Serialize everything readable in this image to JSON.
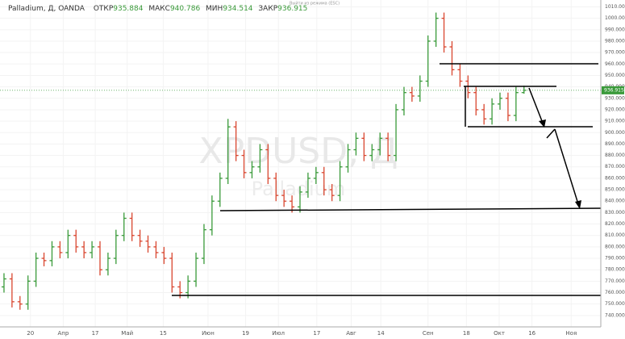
{
  "header": {
    "title": "Palladium, Д, OANDA",
    "open_label": "ОТКР",
    "open": "935.884",
    "high_label": "МАКС",
    "high": "940.786",
    "low_label": "МИН",
    "low": "934.514",
    "close_label": "ЗАКР",
    "close": "936.915"
  },
  "notice": "Выйти из режима (ESC)",
  "watermark": {
    "symbol": "XPDUSD, Д",
    "name": "Palladium"
  },
  "chart_data": {
    "type": "ohlc",
    "up_color": "#3a9a3a",
    "down_color": "#d9462f",
    "open": [
      765,
      772,
      752,
      750,
      770,
      790,
      788,
      800,
      795,
      810,
      800,
      795,
      800,
      780,
      790,
      810,
      825,
      810,
      805,
      800,
      795,
      790,
      765,
      760,
      770,
      790,
      815,
      840,
      860,
      905,
      880,
      865,
      870,
      885,
      860,
      845,
      840,
      835,
      848,
      860,
      865,
      850,
      845,
      870,
      885,
      895,
      880,
      885,
      895,
      880,
      920,
      935,
      932,
      945,
      980,
      1000,
      975,
      955,
      945,
      935,
      920,
      912,
      925,
      930,
      915,
      935
    ],
    "high": [
      777,
      777,
      757,
      775,
      795,
      795,
      805,
      805,
      815,
      815,
      805,
      805,
      805,
      795,
      815,
      830,
      830,
      815,
      810,
      805,
      800,
      795,
      770,
      775,
      795,
      820,
      845,
      865,
      912,
      910,
      885,
      875,
      890,
      890,
      865,
      850,
      845,
      853,
      865,
      870,
      870,
      855,
      875,
      890,
      900,
      900,
      890,
      900,
      900,
      925,
      940,
      940,
      950,
      985,
      1005,
      1005,
      980,
      960,
      950,
      940,
      925,
      930,
      935,
      935,
      940,
      941
    ],
    "low": [
      760,
      747,
      745,
      745,
      765,
      783,
      783,
      790,
      790,
      795,
      790,
      790,
      775,
      775,
      785,
      805,
      805,
      800,
      795,
      790,
      785,
      760,
      755,
      755,
      765,
      785,
      810,
      835,
      855,
      875,
      860,
      860,
      865,
      855,
      840,
      835,
      830,
      830,
      843,
      855,
      845,
      840,
      840,
      865,
      880,
      875,
      875,
      880,
      875,
      875,
      915,
      927,
      927,
      940,
      975,
      970,
      950,
      940,
      930,
      915,
      907,
      907,
      920,
      910,
      910,
      934
    ],
    "close": [
      772,
      752,
      750,
      770,
      790,
      788,
      800,
      795,
      810,
      800,
      795,
      800,
      780,
      790,
      810,
      825,
      810,
      805,
      800,
      795,
      790,
      765,
      760,
      770,
      790,
      815,
      840,
      860,
      905,
      880,
      865,
      870,
      885,
      860,
      845,
      840,
      835,
      848,
      860,
      865,
      850,
      845,
      870,
      885,
      895,
      880,
      885,
      895,
      880,
      920,
      935,
      932,
      945,
      980,
      1000,
      975,
      955,
      945,
      935,
      920,
      912,
      925,
      930,
      915,
      935,
      937
    ],
    "last_price_label": "936.915",
    "xlim": [
      -0.5,
      74.6
    ],
    "xticks": [
      {
        "value": 3.3,
        "label": "20"
      },
      {
        "value": 7.4,
        "label": "Апр"
      },
      {
        "value": 11.4,
        "label": "17"
      },
      {
        "value": 15.4,
        "label": "Май"
      },
      {
        "value": 19.9,
        "label": "15"
      },
      {
        "value": 25.5,
        "label": "Июн"
      },
      {
        "value": 30.2,
        "label": "19"
      },
      {
        "value": 34.3,
        "label": "Июл"
      },
      {
        "value": 39.1,
        "label": "17"
      },
      {
        "value": 43.4,
        "label": "Авг"
      },
      {
        "value": 47.1,
        "label": "14"
      },
      {
        "value": 53.0,
        "label": "Сен"
      },
      {
        "value": 57.8,
        "label": "18"
      },
      {
        "value": 61.9,
        "label": "Окт"
      },
      {
        "value": 66.0,
        "label": "16"
      },
      {
        "value": 70.9,
        "label": "Ноя"
      }
    ],
    "ylim": [
      730,
      1016
    ],
    "yticks": [
      {
        "value": 740,
        "label": "740.000"
      },
      {
        "value": 750,
        "label": "750.000"
      },
      {
        "value": 760,
        "label": "760.000"
      },
      {
        "value": 770,
        "label": "770.000"
      },
      {
        "value": 780,
        "label": "780.000"
      },
      {
        "value": 790,
        "label": "790.000"
      },
      {
        "value": 800,
        "label": "800.000"
      },
      {
        "value": 810,
        "label": "810.000"
      },
      {
        "value": 820,
        "label": "820.000"
      },
      {
        "value": 830,
        "label": "830.000"
      },
      {
        "value": 840,
        "label": "840.000"
      },
      {
        "value": 850,
        "label": "850.000"
      },
      {
        "value": 860,
        "label": "860.000"
      },
      {
        "value": 870,
        "label": "870.000"
      },
      {
        "value": 880,
        "label": "880.000"
      },
      {
        "value": 890,
        "label": "890.000"
      },
      {
        "value": 900,
        "label": "900.000"
      },
      {
        "value": 910,
        "label": "910.000"
      },
      {
        "value": 920,
        "label": "920.000"
      },
      {
        "value": 930,
        "label": "930.000"
      },
      {
        "value": 940,
        "label": "940.000"
      },
      {
        "value": 950,
        "label": "950.000"
      },
      {
        "value": 960,
        "label": "960.000"
      },
      {
        "value": 970,
        "label": "970.000"
      },
      {
        "value": 980,
        "label": "980.000"
      },
      {
        "value": 990,
        "label": "990.000"
      },
      {
        "value": 1000,
        "label": "1000.000"
      },
      {
        "value": 1010,
        "label": "1010.000"
      }
    ],
    "grid": true
  }
}
